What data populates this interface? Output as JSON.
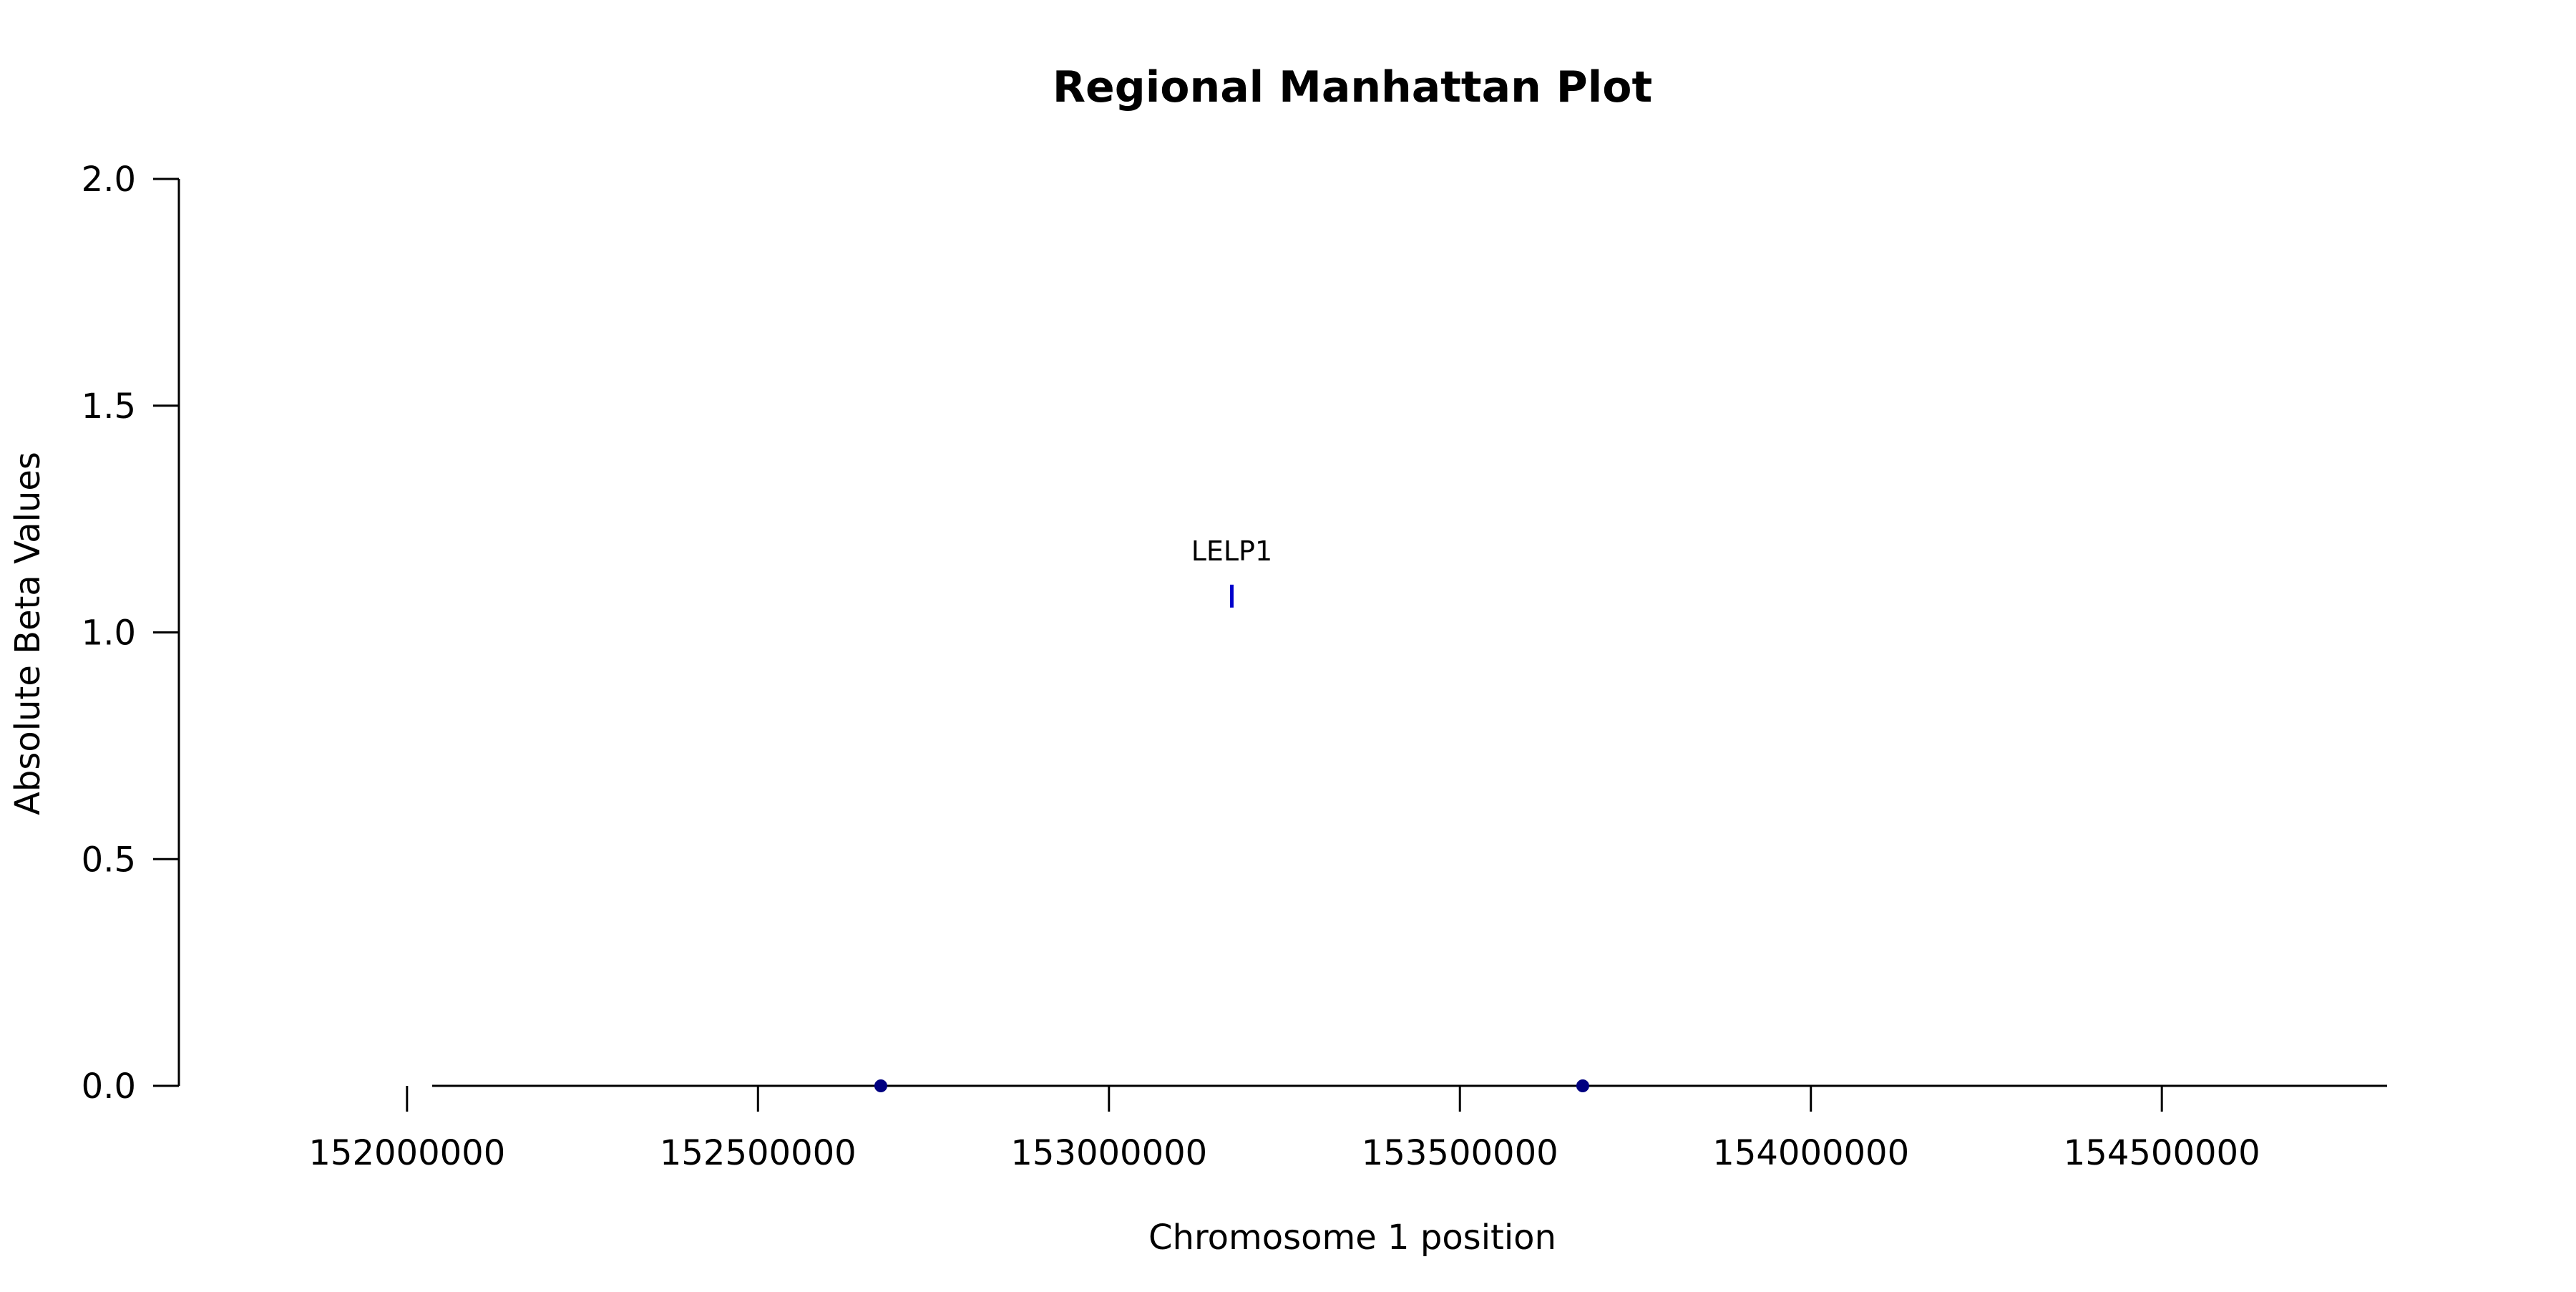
{
  "chart_data": {
    "type": "scatter",
    "title": "Regional Manhattan Plot",
    "xlabel": "Chromosome 1 position",
    "ylabel": "Absolute Beta Values",
    "xlim": [
      151675000,
      154825000
    ],
    "ylim": [
      0,
      2.0
    ],
    "x_ticks": [
      152000000,
      152500000,
      153000000,
      153500000,
      154000000,
      154500000
    ],
    "x_tick_labels": [
      "152000000",
      "152500000",
      "153000000",
      "153500000",
      "154000000",
      "154500000"
    ],
    "y_ticks": [
      0.0,
      0.5,
      1.0,
      1.5,
      2.0
    ],
    "y_tick_labels": [
      "0.0",
      "0.5",
      "1.0",
      "1.5",
      "2.0"
    ],
    "grid": false,
    "legend": "none",
    "series": [
      {
        "color": "#000080",
        "points": [
          {
            "x": 152675000,
            "y": 0.0
          },
          {
            "x": 153675000,
            "y": 0.0
          }
        ]
      }
    ],
    "gene_markers": [
      {
        "label": "LELP1",
        "x": 153175000,
        "y": 1.08,
        "color": "#0000CC"
      }
    ]
  }
}
